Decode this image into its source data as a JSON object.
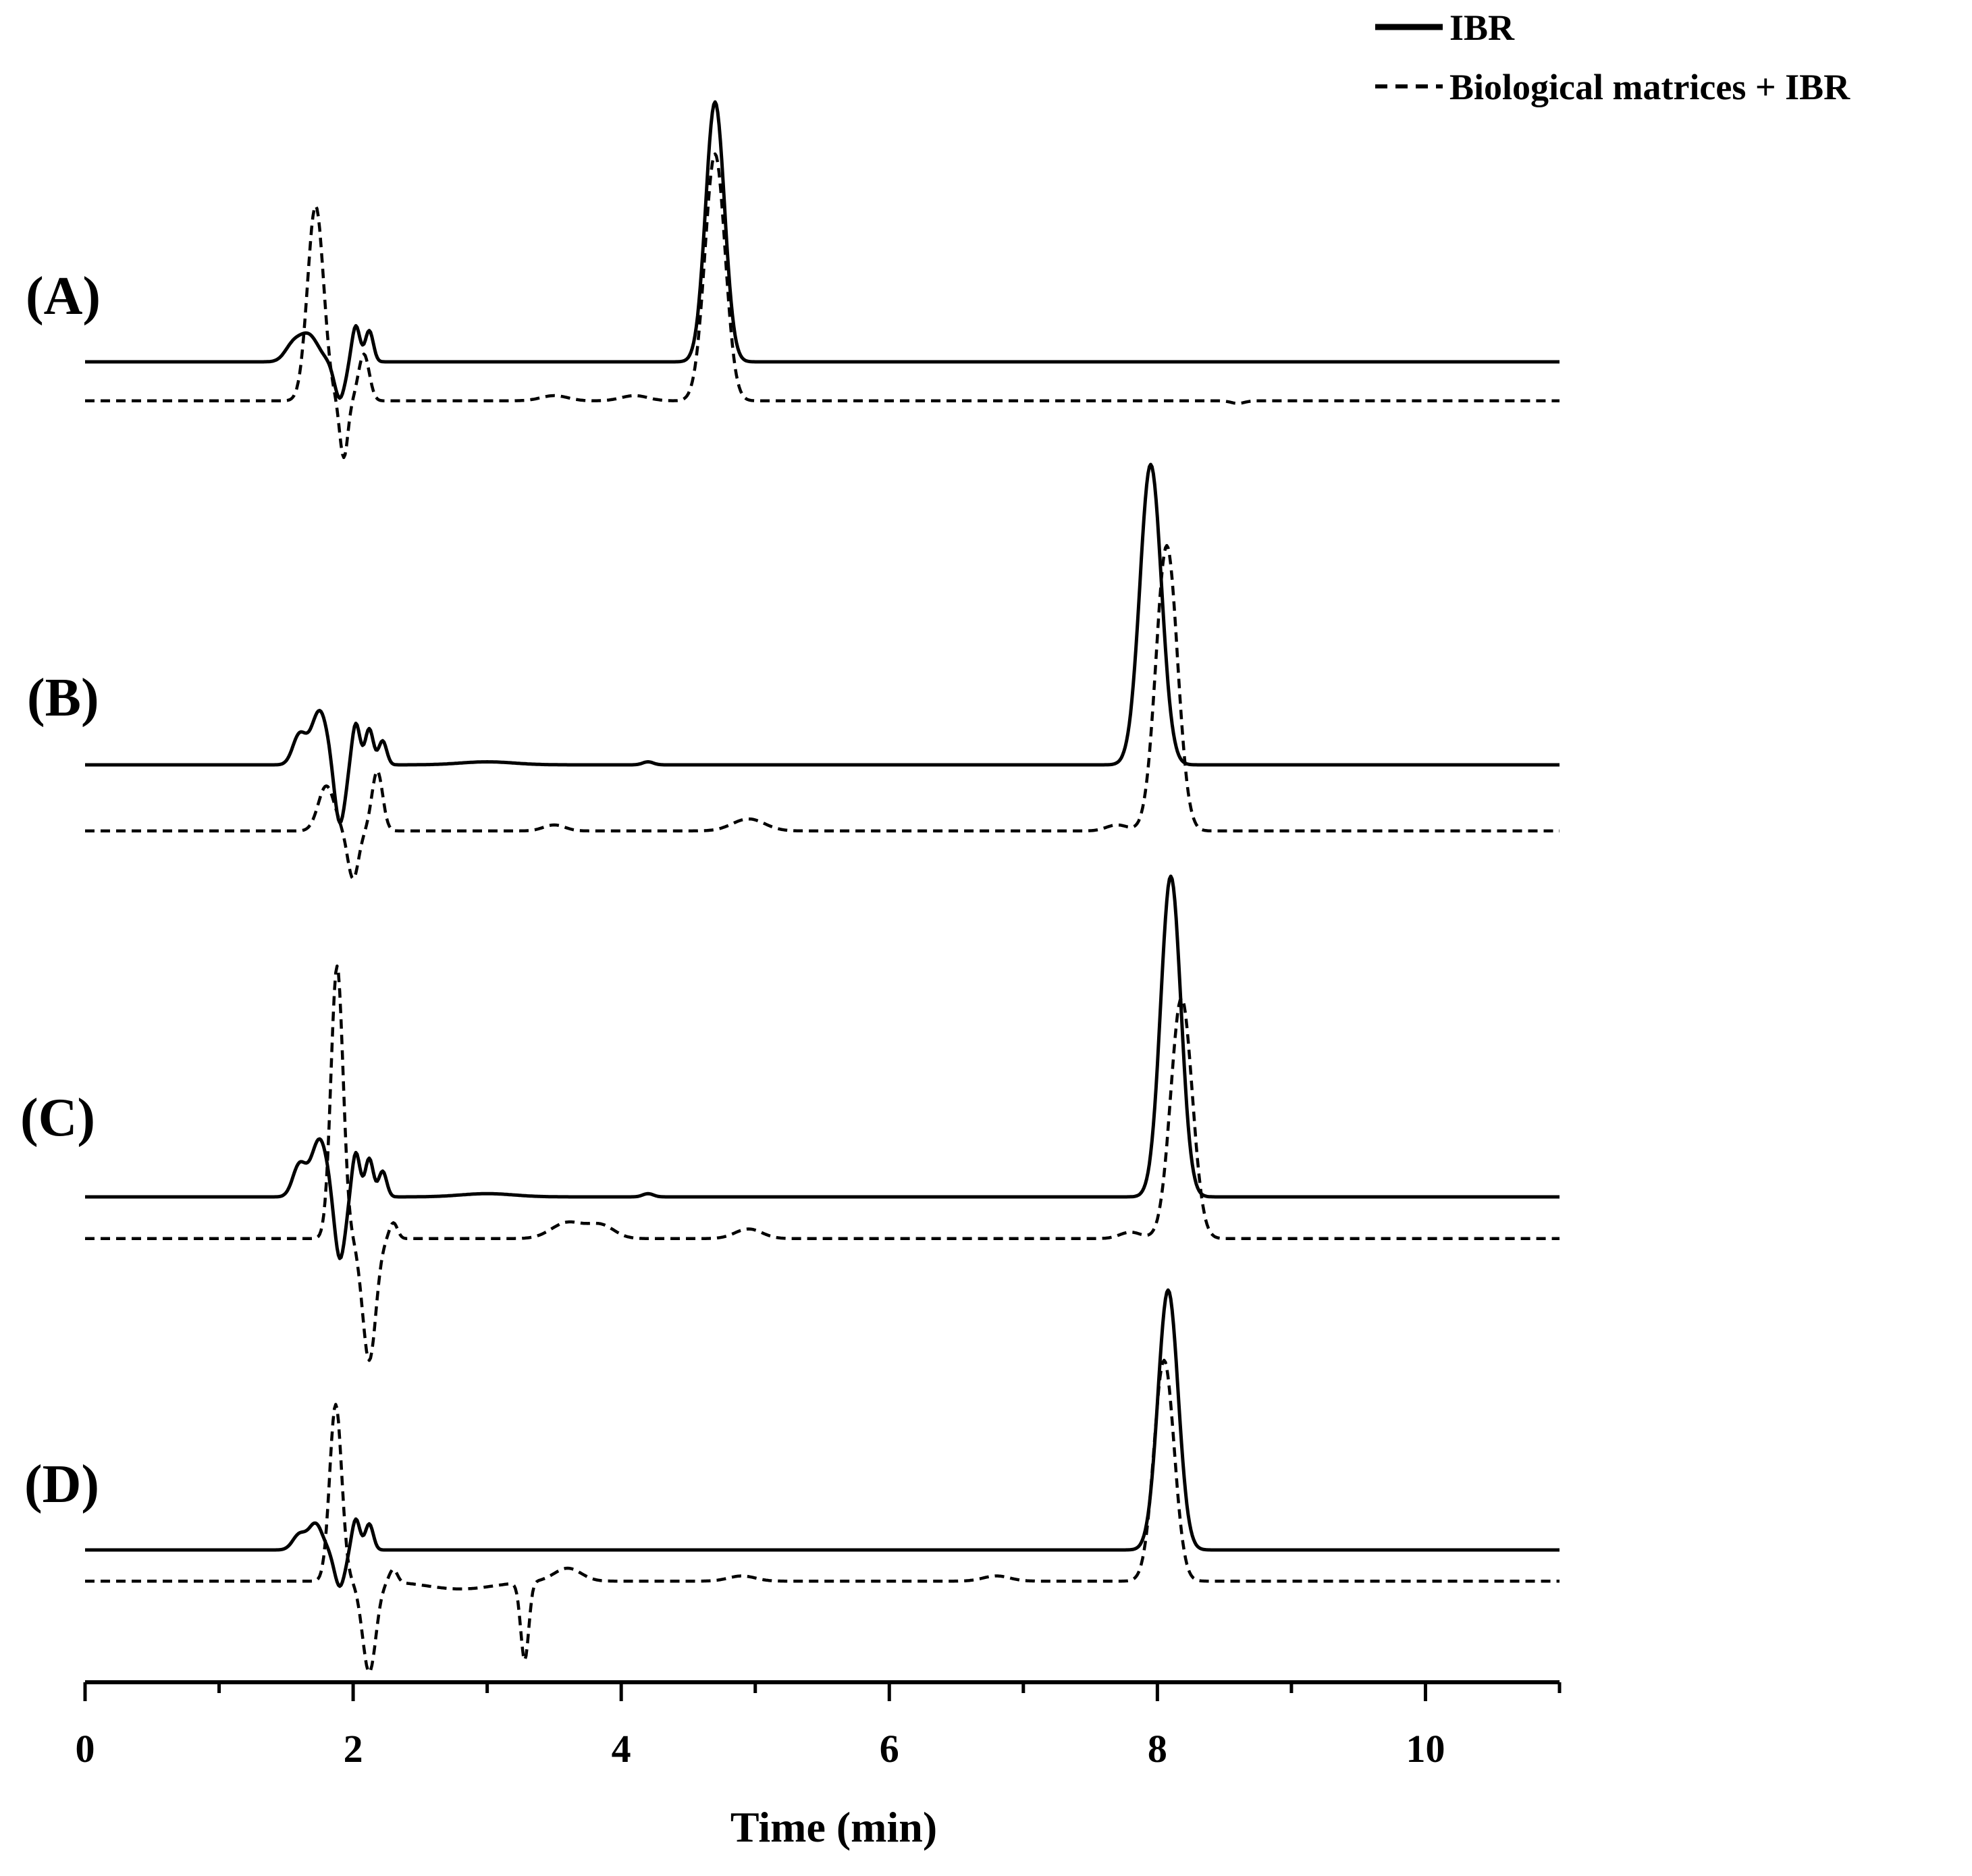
{
  "chart_data": {
    "type": "line",
    "xlabel": "Time (min)",
    "ylabel": "",
    "xlim": [
      0,
      11
    ],
    "x_ticks": [
      0,
      2,
      4,
      6,
      8,
      10
    ],
    "x_tick_labels": [
      "0",
      "2",
      "4",
      "6",
      "8",
      "10"
    ],
    "grid": false,
    "legend_position": "top-right",
    "legend": [
      {
        "label": "IBR",
        "style": "solid"
      },
      {
        "label": "Biological matrices + IBR",
        "style": "dashed"
      }
    ],
    "colors": {
      "line": "#000000",
      "background": "#ffffff"
    },
    "panels": [
      {
        "label": "(A)",
        "series": [
          {
            "name": "IBR",
            "style": "solid",
            "baseline": 0,
            "peaks": [
              {
                "t": 1.55,
                "h": 0.06,
                "w": 0.06
              },
              {
                "t": 1.67,
                "h": 0.1,
                "w": 0.07
              },
              {
                "t": 1.9,
                "h": -0.14,
                "w": 0.04
              },
              {
                "t": 2.02,
                "h": 0.14,
                "w": 0.03
              },
              {
                "t": 2.12,
                "h": 0.12,
                "w": 0.03
              },
              {
                "t": 4.7,
                "h": 1.0,
                "w": 0.07
              }
            ]
          },
          {
            "name": "Biological matrices + IBR",
            "style": "dashed",
            "baseline": -0.15,
            "peaks": [
              {
                "t": 1.72,
                "h": 0.75,
                "w": 0.06
              },
              {
                "t": 1.93,
                "h": -0.22,
                "w": 0.03
              },
              {
                "t": 2.08,
                "h": 0.18,
                "w": 0.04
              },
              {
                "t": 3.5,
                "h": 0.02,
                "w": 0.1
              },
              {
                "t": 4.1,
                "h": 0.02,
                "w": 0.1
              },
              {
                "t": 4.7,
                "h": 0.95,
                "w": 0.075
              },
              {
                "t": 8.6,
                "h": -0.01,
                "w": 0.05
              }
            ]
          }
        ]
      },
      {
        "label": "(B)",
        "series": [
          {
            "name": "IBR",
            "style": "solid",
            "baseline": 0,
            "peaks": [
              {
                "t": 1.6,
                "h": 0.1,
                "w": 0.05
              },
              {
                "t": 1.75,
                "h": 0.18,
                "w": 0.06
              },
              {
                "t": 1.9,
                "h": -0.2,
                "w": 0.04
              },
              {
                "t": 2.02,
                "h": 0.14,
                "w": 0.03
              },
              {
                "t": 2.12,
                "h": 0.12,
                "w": 0.03
              },
              {
                "t": 2.22,
                "h": 0.08,
                "w": 0.03
              },
              {
                "t": 3.0,
                "h": 0.01,
                "w": 0.2
              },
              {
                "t": 4.2,
                "h": 0.01,
                "w": 0.04
              },
              {
                "t": 7.95,
                "h": 1.0,
                "w": 0.08
              }
            ]
          },
          {
            "name": "Biological matrices + IBR",
            "style": "dashed",
            "baseline": -0.22,
            "peaks": [
              {
                "t": 1.8,
                "h": 0.15,
                "w": 0.06
              },
              {
                "t": 2.0,
                "h": -0.16,
                "w": 0.04
              },
              {
                "t": 2.18,
                "h": 0.2,
                "w": 0.04
              },
              {
                "t": 3.5,
                "h": 0.02,
                "w": 0.08
              },
              {
                "t": 4.95,
                "h": 0.04,
                "w": 0.12
              },
              {
                "t": 7.7,
                "h": 0.02,
                "w": 0.08
              },
              {
                "t": 8.07,
                "h": 0.95,
                "w": 0.08
              }
            ]
          }
        ]
      },
      {
        "label": "(C)",
        "series": [
          {
            "name": "IBR",
            "style": "solid",
            "baseline": 0,
            "peaks": [
              {
                "t": 1.6,
                "h": 0.1,
                "w": 0.05
              },
              {
                "t": 1.75,
                "h": 0.18,
                "w": 0.06
              },
              {
                "t": 1.9,
                "h": -0.2,
                "w": 0.04
              },
              {
                "t": 2.02,
                "h": 0.14,
                "w": 0.03
              },
              {
                "t": 2.12,
                "h": 0.12,
                "w": 0.03
              },
              {
                "t": 2.22,
                "h": 0.08,
                "w": 0.03
              },
              {
                "t": 3.0,
                "h": 0.01,
                "w": 0.2
              },
              {
                "t": 4.2,
                "h": 0.01,
                "w": 0.04
              },
              {
                "t": 8.1,
                "h": 1.0,
                "w": 0.075
              }
            ]
          },
          {
            "name": "Biological matrices + IBR",
            "style": "dashed",
            "baseline": -0.13,
            "peaks": [
              {
                "t": 1.88,
                "h": 0.85,
                "w": 0.045
              },
              {
                "t": 2.12,
                "h": -0.38,
                "w": 0.05
              },
              {
                "t": 2.3,
                "h": 0.05,
                "w": 0.03
              },
              {
                "t": 3.6,
                "h": 0.05,
                "w": 0.12
              },
              {
                "t": 3.85,
                "h": 0.04,
                "w": 0.1
              },
              {
                "t": 4.95,
                "h": 0.03,
                "w": 0.1
              },
              {
                "t": 7.8,
                "h": 0.02,
                "w": 0.08
              },
              {
                "t": 8.18,
                "h": 0.75,
                "w": 0.08
              }
            ]
          }
        ]
      },
      {
        "label": "(D)",
        "series": [
          {
            "name": "IBR",
            "style": "solid",
            "baseline": 0,
            "peaks": [
              {
                "t": 1.6,
                "h": 0.06,
                "w": 0.05
              },
              {
                "t": 1.72,
                "h": 0.1,
                "w": 0.05
              },
              {
                "t": 1.9,
                "h": -0.14,
                "w": 0.04
              },
              {
                "t": 2.02,
                "h": 0.12,
                "w": 0.03
              },
              {
                "t": 2.12,
                "h": 0.1,
                "w": 0.03
              },
              {
                "t": 8.08,
                "h": 1.0,
                "w": 0.075
              }
            ]
          },
          {
            "name": "Biological matrices + IBR",
            "style": "dashed",
            "baseline": -0.12,
            "peaks": [
              {
                "t": 1.87,
                "h": 0.68,
                "w": 0.045
              },
              {
                "t": 2.12,
                "h": -0.35,
                "w": 0.05
              },
              {
                "t": 2.3,
                "h": 0.05,
                "w": 0.03
              },
              {
                "t": 2.8,
                "h": -0.03,
                "w": 0.25
              },
              {
                "t": 3.28,
                "h": -0.3,
                "w": 0.03
              },
              {
                "t": 3.6,
                "h": 0.05,
                "w": 0.1
              },
              {
                "t": 4.9,
                "h": 0.02,
                "w": 0.1
              },
              {
                "t": 6.8,
                "h": 0.02,
                "w": 0.1
              },
              {
                "t": 8.05,
                "h": 0.85,
                "w": 0.075
              }
            ]
          }
        ]
      }
    ]
  }
}
